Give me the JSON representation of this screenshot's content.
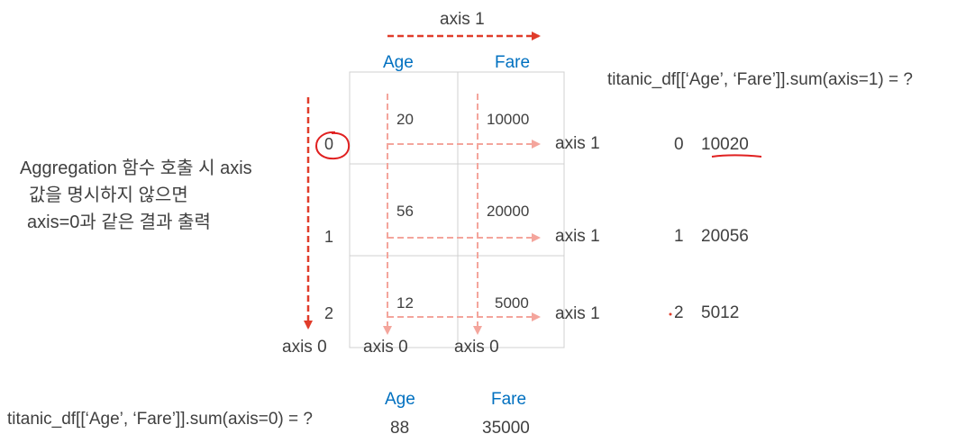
{
  "axis1_top": "axis 1",
  "columns": [
    "Age",
    "Fare"
  ],
  "rows": [
    {
      "index": "0",
      "age": "20",
      "fare": "10000",
      "axis_label": "axis 1",
      "sum_index": "0",
      "sum_value": "10020"
    },
    {
      "index": "1",
      "age": "56",
      "fare": "20000",
      "axis_label": "axis 1",
      "sum_index": "1",
      "sum_value": "20056"
    },
    {
      "index": "2",
      "age": "12",
      "fare": "5000",
      "axis_label": "axis 1",
      "sum_index": "2",
      "sum_value": "5012"
    }
  ],
  "axis0_labels": [
    "axis 0",
    "axis 0",
    "axis 0"
  ],
  "formula_axis1": "titanic_df[[‘Age’, ‘Fare’]].sum(axis=1) = ?",
  "formula_axis0": "titanic_df[[‘Age’, ‘Fare’]].sum(axis=0) = ?",
  "note_lines": [
    "Aggregation 함수 호출 시 axis",
    "값을 명시하지 않으면",
    "axis=0과 같은 결과 출력"
  ],
  "bottom_headers": [
    "Age",
    "Fare"
  ],
  "bottom_values": [
    "88",
    "35000"
  ],
  "colors": {
    "arrow_red": "#e03c2a",
    "arrow_pink": "#f4a59c",
    "blue_text": "#0070c0",
    "grid": "#d0d0d0"
  }
}
